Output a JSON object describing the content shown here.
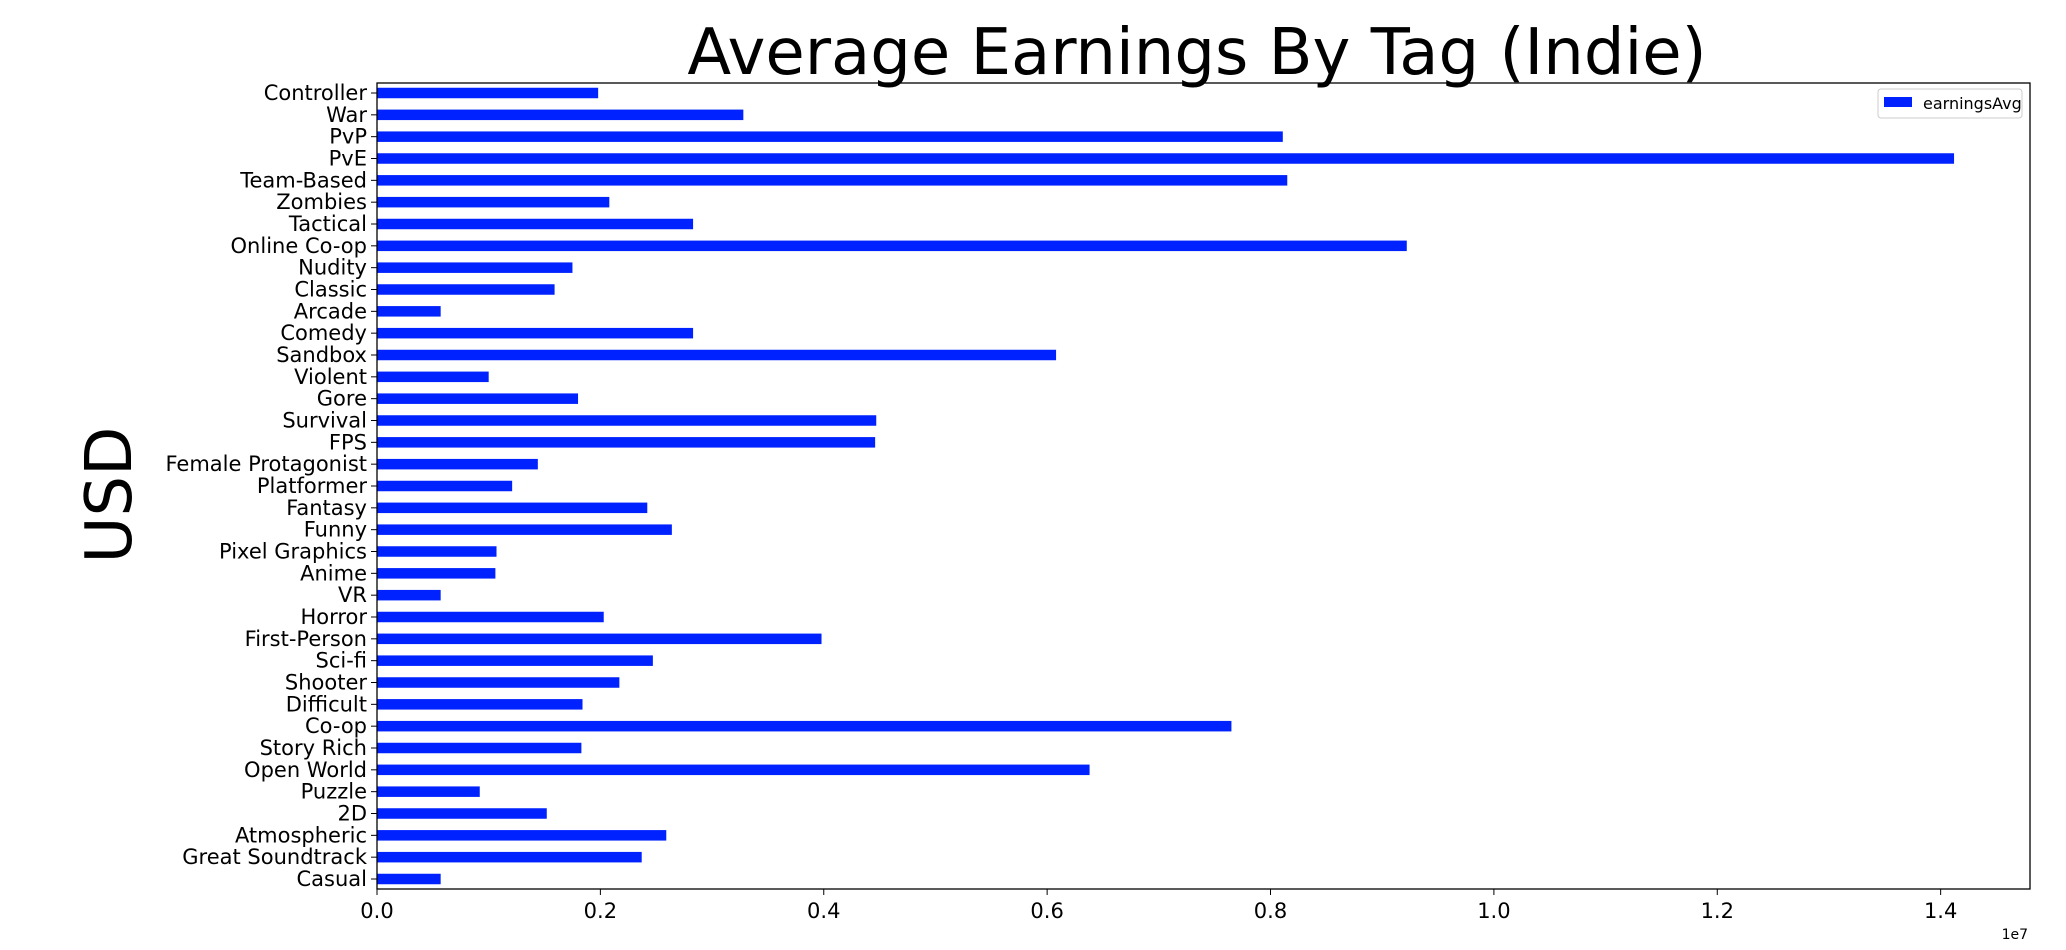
{
  "chart_data": {
    "type": "bar",
    "orientation": "horizontal",
    "title": "Average Earnings By Tag (Indie)",
    "xlabel": "",
    "ylabel": "USD",
    "xlim": [
      0,
      14800000
    ],
    "x_tick_values": [
      0,
      2000000,
      4000000,
      6000000,
      8000000,
      10000000,
      12000000,
      14000000
    ],
    "x_tick_labels": [
      "0.0",
      "0.2",
      "0.4",
      "0.6",
      "0.8",
      "1.0",
      "1.2",
      "1.4"
    ],
    "x_offset_label": "1e7",
    "grid": false,
    "legend_position": "top-right",
    "bar_color": "#0022ff",
    "series": [
      {
        "name": "earningsAvg",
        "categories": [
          "Casual",
          "Great Soundtrack",
          "Atmospheric",
          "2D",
          "Puzzle",
          "Open World",
          "Story Rich",
          "Co-op",
          "Difficult",
          "Shooter",
          "Sci-fi",
          "First-Person",
          "Horror",
          "VR",
          "Anime",
          "Pixel Graphics",
          "Funny",
          "Fantasy",
          "Platformer",
          "Female Protagonist",
          "FPS",
          "Survival",
          "Gore",
          "Violent",
          "Sandbox",
          "Comedy",
          "Arcade",
          "Classic",
          "Nudity",
          "Online Co-op",
          "Tactical",
          "Zombies",
          "Team-Based",
          "PvE",
          "PvP",
          "War",
          "Controller"
        ],
        "values": [
          570000,
          2370000,
          2590000,
          1520000,
          920000,
          6380000,
          1830000,
          7650000,
          1840000,
          2170000,
          2470000,
          3980000,
          2030000,
          570000,
          1060000,
          1070000,
          2640000,
          2420000,
          1210000,
          1440000,
          4460000,
          4470000,
          1800000,
          1000000,
          6080000,
          2830000,
          570000,
          1590000,
          1750000,
          9220000,
          2830000,
          2080000,
          8150000,
          14120000,
          8110000,
          3280000,
          1980000
        ]
      }
    ]
  }
}
